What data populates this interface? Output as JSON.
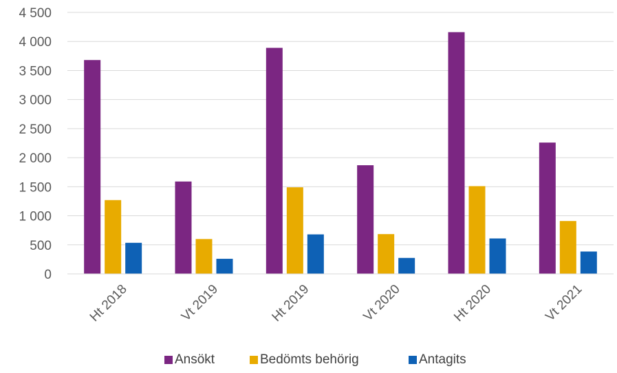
{
  "chart_data": {
    "type": "bar",
    "title": "",
    "xlabel": "",
    "ylabel": "",
    "categories": [
      "Ht 2018",
      "Vt 2019",
      "Ht 2019",
      "Vt 2020",
      "Ht 2020",
      "Vt 2021"
    ],
    "series": [
      {
        "name": "Ansökt",
        "color": "#7B2682",
        "values": [
          3680,
          1590,
          3890,
          1870,
          4160,
          2260
        ]
      },
      {
        "name": "Bedömts behörig",
        "color": "#E8AB00",
        "values": [
          1270,
          600,
          1490,
          685,
          1510,
          910
        ]
      },
      {
        "name": "Antagits",
        "color": "#0E61B5",
        "values": [
          535,
          260,
          680,
          275,
          610,
          385
        ]
      }
    ],
    "ylim": [
      0,
      4500
    ],
    "y_ticks": [
      0,
      500,
      1000,
      1500,
      2000,
      2500,
      3000,
      3500,
      4000,
      4500
    ],
    "y_tick_labels": [
      "0",
      "500",
      "1 000",
      "1 500",
      "2 000",
      "2 500",
      "3 000",
      "3 500",
      "4 000",
      "4 500"
    ],
    "grid": true,
    "legend_position": "bottom"
  }
}
